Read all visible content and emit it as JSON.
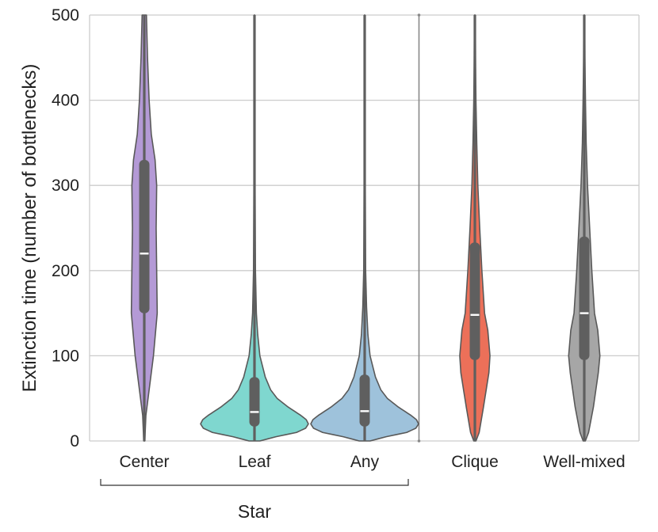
{
  "chart_data": {
    "type": "violin",
    "ylabel": "Extinction time (number of bottlenecks)",
    "ylim": [
      0,
      500
    ],
    "yticks": [
      0,
      100,
      200,
      300,
      400,
      500
    ],
    "grid": "horizontal",
    "categories": [
      "Center",
      "Leaf",
      "Any",
      "Clique",
      "Well-mixed"
    ],
    "group_bracket": {
      "label": "Star",
      "spans": [
        "Center",
        "Leaf",
        "Any"
      ]
    },
    "separator_after": "Any",
    "series": [
      {
        "category": "Center",
        "color": "#b49ad6",
        "median": 220,
        "q1": 150,
        "q3": 330,
        "whisker_low": 0,
        "whisker_high": 500,
        "profile": [
          [
            0,
            0.01
          ],
          [
            30,
            0.03
          ],
          [
            60,
            0.09
          ],
          [
            100,
            0.17
          ],
          [
            150,
            0.24
          ],
          [
            200,
            0.23
          ],
          [
            250,
            0.22
          ],
          [
            300,
            0.23
          ],
          [
            330,
            0.2
          ],
          [
            360,
            0.13
          ],
          [
            400,
            0.09
          ],
          [
            450,
            0.06
          ],
          [
            500,
            0.04
          ]
        ]
      },
      {
        "category": "Leaf",
        "color": "#7fd7cf",
        "median": 34,
        "q1": 17,
        "q3": 75,
        "whisker_low": 0,
        "whisker_high": 500,
        "profile": [
          [
            0,
            0.1
          ],
          [
            5,
            0.4
          ],
          [
            10,
            0.78
          ],
          [
            15,
            0.95
          ],
          [
            20,
            1.0
          ],
          [
            25,
            0.96
          ],
          [
            30,
            0.86
          ],
          [
            40,
            0.62
          ],
          [
            50,
            0.42
          ],
          [
            60,
            0.3
          ],
          [
            75,
            0.2
          ],
          [
            100,
            0.1
          ],
          [
            125,
            0.06
          ],
          [
            150,
            0.035
          ],
          [
            200,
            0.018
          ],
          [
            300,
            0.01
          ],
          [
            500,
            0.005
          ]
        ]
      },
      {
        "category": "Any",
        "color": "#9ec2db",
        "median": 35,
        "q1": 17,
        "q3": 78,
        "whisker_low": 0,
        "whisker_high": 500,
        "profile": [
          [
            0,
            0.1
          ],
          [
            5,
            0.4
          ],
          [
            10,
            0.78
          ],
          [
            15,
            0.95
          ],
          [
            20,
            1.0
          ],
          [
            25,
            0.96
          ],
          [
            30,
            0.86
          ],
          [
            40,
            0.62
          ],
          [
            50,
            0.42
          ],
          [
            60,
            0.3
          ],
          [
            75,
            0.2
          ],
          [
            100,
            0.1
          ],
          [
            125,
            0.06
          ],
          [
            157,
            0.035
          ],
          [
            200,
            0.018
          ],
          [
            300,
            0.01
          ],
          [
            500,
            0.005
          ]
        ]
      },
      {
        "category": "Clique",
        "color": "#ec7059",
        "median": 148,
        "q1": 95,
        "q3": 233,
        "whisker_low": 0,
        "whisker_high": 500,
        "profile": [
          [
            0,
            0.02
          ],
          [
            10,
            0.08
          ],
          [
            40,
            0.16
          ],
          [
            80,
            0.26
          ],
          [
            100,
            0.28
          ],
          [
            130,
            0.24
          ],
          [
            150,
            0.18
          ],
          [
            200,
            0.13
          ],
          [
            250,
            0.09
          ],
          [
            300,
            0.055
          ],
          [
            350,
            0.035
          ],
          [
            400,
            0.02
          ],
          [
            450,
            0.012
          ],
          [
            500,
            0.008
          ]
        ]
      },
      {
        "category": "Well-mixed",
        "color": "#a6a6a6",
        "median": 150,
        "q1": 95,
        "q3": 240,
        "whisker_low": 0,
        "whisker_high": 500,
        "profile": [
          [
            0,
            0.02
          ],
          [
            10,
            0.08
          ],
          [
            40,
            0.17
          ],
          [
            80,
            0.26
          ],
          [
            100,
            0.29
          ],
          [
            130,
            0.25
          ],
          [
            150,
            0.19
          ],
          [
            200,
            0.14
          ],
          [
            250,
            0.1
          ],
          [
            300,
            0.06
          ],
          [
            350,
            0.035
          ],
          [
            400,
            0.022
          ],
          [
            450,
            0.012
          ],
          [
            500,
            0.008
          ]
        ]
      }
    ]
  }
}
